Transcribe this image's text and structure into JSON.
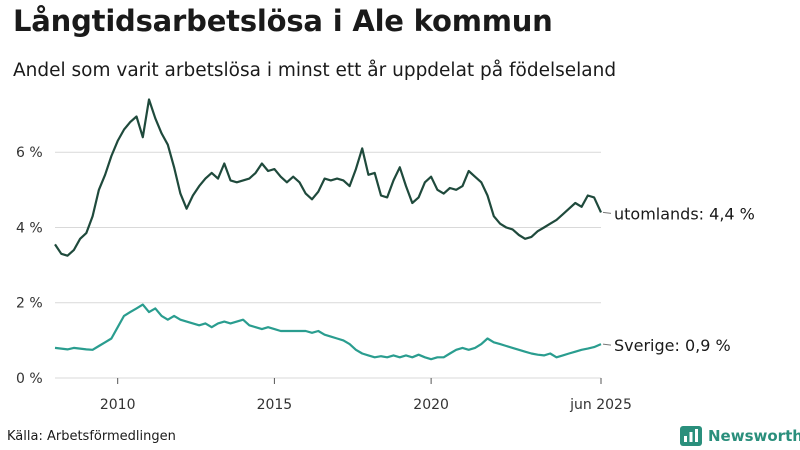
{
  "header": {
    "title": "Långtidsarbetslösa i Ale kommun",
    "subtitle": "Andel som varit arbetslösa i minst ett år uppdelat på födelseland"
  },
  "footer": {
    "source": "Källa: Arbetsförmedlingen",
    "brand": "Newsworthy",
    "brand_icon": "bar-chart-logo-icon"
  },
  "colors": {
    "utomlands": "#1f4a3c",
    "sverige": "#2a9d8f",
    "grid": "#d9d9d9",
    "brand": "#2a8f7c"
  },
  "chart_data": {
    "type": "line",
    "title": "Långtidsarbetslösa i Ale kommun",
    "subtitle": "Andel som varit arbetslösa i minst ett år uppdelat på födelseland",
    "xlabel": "",
    "ylabel": "",
    "xlim": [
      2008.0,
      2025.42
    ],
    "ylim": [
      0,
      7.6
    ],
    "y_ticks": [
      0,
      2,
      4,
      6
    ],
    "y_tick_labels": [
      "0 %",
      "2 %",
      "4 %",
      "6 %"
    ],
    "x_ticks": [
      2010,
      2015,
      2020,
      2025.42
    ],
    "x_tick_labels": [
      "2010",
      "2015",
      "2020",
      "jun 2025"
    ],
    "grid": true,
    "legend": "end-labels",
    "series": [
      {
        "name": "utomlands",
        "end_label": "utomlands: 4,4 %",
        "points": [
          [
            2008.0,
            3.55
          ],
          [
            2008.2,
            3.3
          ],
          [
            2008.4,
            3.25
          ],
          [
            2008.6,
            3.4
          ],
          [
            2008.8,
            3.7
          ],
          [
            2009.0,
            3.85
          ],
          [
            2009.2,
            4.3
          ],
          [
            2009.4,
            5.0
          ],
          [
            2009.6,
            5.4
          ],
          [
            2009.8,
            5.9
          ],
          [
            2010.0,
            6.3
          ],
          [
            2010.2,
            6.6
          ],
          [
            2010.4,
            6.8
          ],
          [
            2010.6,
            6.95
          ],
          [
            2010.8,
            6.4
          ],
          [
            2011.0,
            7.4
          ],
          [
            2011.2,
            6.9
          ],
          [
            2011.4,
            6.5
          ],
          [
            2011.6,
            6.2
          ],
          [
            2011.8,
            5.6
          ],
          [
            2012.0,
            4.9
          ],
          [
            2012.2,
            4.5
          ],
          [
            2012.4,
            4.85
          ],
          [
            2012.6,
            5.1
          ],
          [
            2012.8,
            5.3
          ],
          [
            2013.0,
            5.45
          ],
          [
            2013.2,
            5.3
          ],
          [
            2013.4,
            5.7
          ],
          [
            2013.6,
            5.25
          ],
          [
            2013.8,
            5.2
          ],
          [
            2014.0,
            5.25
          ],
          [
            2014.2,
            5.3
          ],
          [
            2014.4,
            5.45
          ],
          [
            2014.6,
            5.7
          ],
          [
            2014.8,
            5.5
          ],
          [
            2015.0,
            5.55
          ],
          [
            2015.2,
            5.35
          ],
          [
            2015.4,
            5.2
          ],
          [
            2015.6,
            5.35
          ],
          [
            2015.8,
            5.2
          ],
          [
            2016.0,
            4.9
          ],
          [
            2016.2,
            4.75
          ],
          [
            2016.4,
            4.95
          ],
          [
            2016.6,
            5.3
          ],
          [
            2016.8,
            5.25
          ],
          [
            2017.0,
            5.3
          ],
          [
            2017.2,
            5.25
          ],
          [
            2017.4,
            5.1
          ],
          [
            2017.6,
            5.55
          ],
          [
            2017.8,
            6.1
          ],
          [
            2018.0,
            5.4
          ],
          [
            2018.2,
            5.45
          ],
          [
            2018.4,
            4.85
          ],
          [
            2018.6,
            4.8
          ],
          [
            2018.8,
            5.25
          ],
          [
            2019.0,
            5.6
          ],
          [
            2019.2,
            5.1
          ],
          [
            2019.4,
            4.65
          ],
          [
            2019.6,
            4.8
          ],
          [
            2019.8,
            5.2
          ],
          [
            2020.0,
            5.35
          ],
          [
            2020.2,
            5.0
          ],
          [
            2020.4,
            4.9
          ],
          [
            2020.6,
            5.05
          ],
          [
            2020.8,
            5.0
          ],
          [
            2021.0,
            5.1
          ],
          [
            2021.2,
            5.5
          ],
          [
            2021.4,
            5.35
          ],
          [
            2021.6,
            5.2
          ],
          [
            2021.8,
            4.85
          ],
          [
            2022.0,
            4.3
          ],
          [
            2022.2,
            4.1
          ],
          [
            2022.4,
            4.0
          ],
          [
            2022.6,
            3.95
          ],
          [
            2022.8,
            3.8
          ],
          [
            2023.0,
            3.7
          ],
          [
            2023.2,
            3.75
          ],
          [
            2023.4,
            3.9
          ],
          [
            2023.6,
            4.0
          ],
          [
            2023.8,
            4.1
          ],
          [
            2024.0,
            4.2
          ],
          [
            2024.2,
            4.35
          ],
          [
            2024.4,
            4.5
          ],
          [
            2024.6,
            4.65
          ],
          [
            2024.8,
            4.55
          ],
          [
            2025.0,
            4.85
          ],
          [
            2025.2,
            4.8
          ],
          [
            2025.42,
            4.4
          ]
        ]
      },
      {
        "name": "Sverige",
        "end_label": "Sverige: 0,9 %",
        "points": [
          [
            2008.0,
            0.8
          ],
          [
            2008.2,
            0.78
          ],
          [
            2008.4,
            0.76
          ],
          [
            2008.6,
            0.8
          ],
          [
            2008.8,
            0.78
          ],
          [
            2009.0,
            0.76
          ],
          [
            2009.2,
            0.75
          ],
          [
            2009.4,
            0.85
          ],
          [
            2009.6,
            0.95
          ],
          [
            2009.8,
            1.05
          ],
          [
            2010.0,
            1.35
          ],
          [
            2010.2,
            1.65
          ],
          [
            2010.4,
            1.75
          ],
          [
            2010.6,
            1.85
          ],
          [
            2010.8,
            1.95
          ],
          [
            2011.0,
            1.75
          ],
          [
            2011.2,
            1.85
          ],
          [
            2011.4,
            1.65
          ],
          [
            2011.6,
            1.55
          ],
          [
            2011.8,
            1.65
          ],
          [
            2012.0,
            1.55
          ],
          [
            2012.2,
            1.5
          ],
          [
            2012.4,
            1.45
          ],
          [
            2012.6,
            1.4
          ],
          [
            2012.8,
            1.45
          ],
          [
            2013.0,
            1.35
          ],
          [
            2013.2,
            1.45
          ],
          [
            2013.4,
            1.5
          ],
          [
            2013.6,
            1.45
          ],
          [
            2013.8,
            1.5
          ],
          [
            2014.0,
            1.55
          ],
          [
            2014.2,
            1.4
          ],
          [
            2014.4,
            1.35
          ],
          [
            2014.6,
            1.3
          ],
          [
            2014.8,
            1.35
          ],
          [
            2015.0,
            1.3
          ],
          [
            2015.2,
            1.25
          ],
          [
            2015.4,
            1.25
          ],
          [
            2015.6,
            1.25
          ],
          [
            2015.8,
            1.25
          ],
          [
            2016.0,
            1.25
          ],
          [
            2016.2,
            1.2
          ],
          [
            2016.4,
            1.25
          ],
          [
            2016.6,
            1.15
          ],
          [
            2016.8,
            1.1
          ],
          [
            2017.0,
            1.05
          ],
          [
            2017.2,
            1.0
          ],
          [
            2017.4,
            0.9
          ],
          [
            2017.6,
            0.75
          ],
          [
            2017.8,
            0.65
          ],
          [
            2018.0,
            0.6
          ],
          [
            2018.2,
            0.55
          ],
          [
            2018.4,
            0.58
          ],
          [
            2018.6,
            0.55
          ],
          [
            2018.8,
            0.6
          ],
          [
            2019.0,
            0.55
          ],
          [
            2019.2,
            0.6
          ],
          [
            2019.4,
            0.55
          ],
          [
            2019.6,
            0.62
          ],
          [
            2019.8,
            0.55
          ],
          [
            2020.0,
            0.5
          ],
          [
            2020.2,
            0.55
          ],
          [
            2020.4,
            0.55
          ],
          [
            2020.6,
            0.65
          ],
          [
            2020.8,
            0.75
          ],
          [
            2021.0,
            0.8
          ],
          [
            2021.2,
            0.75
          ],
          [
            2021.4,
            0.8
          ],
          [
            2021.6,
            0.9
          ],
          [
            2021.8,
            1.05
          ],
          [
            2022.0,
            0.95
          ],
          [
            2022.2,
            0.9
          ],
          [
            2022.4,
            0.85
          ],
          [
            2022.6,
            0.8
          ],
          [
            2022.8,
            0.75
          ],
          [
            2023.0,
            0.7
          ],
          [
            2023.2,
            0.65
          ],
          [
            2023.4,
            0.62
          ],
          [
            2023.6,
            0.6
          ],
          [
            2023.8,
            0.65
          ],
          [
            2024.0,
            0.55
          ],
          [
            2024.2,
            0.6
          ],
          [
            2024.4,
            0.65
          ],
          [
            2024.6,
            0.7
          ],
          [
            2024.8,
            0.75
          ],
          [
            2025.0,
            0.78
          ],
          [
            2025.2,
            0.82
          ],
          [
            2025.42,
            0.9
          ]
        ]
      }
    ]
  }
}
